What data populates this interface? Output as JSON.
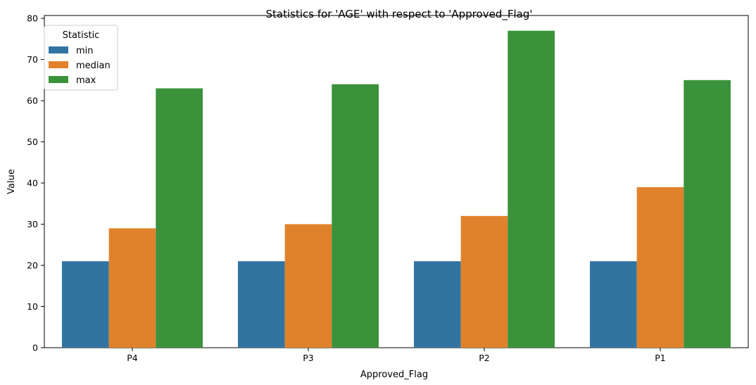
{
  "chart_data": {
    "type": "bar",
    "title": "Statistics for 'AGE' with respect to 'Approved_Flag'",
    "xlabel": "Approved_Flag",
    "ylabel": "Value",
    "categories": [
      "P4",
      "P3",
      "P2",
      "P1"
    ],
    "ylim": [
      0,
      80.7
    ],
    "yticks": [
      0,
      10,
      20,
      30,
      40,
      50,
      60,
      70,
      80
    ],
    "legend": {
      "title": "Statistic",
      "placement": "top-left"
    },
    "grid": false,
    "series": [
      {
        "name": "min",
        "color": "#3274a1",
        "values": [
          21,
          21,
          21,
          21
        ]
      },
      {
        "name": "median",
        "color": "#e1812c",
        "values": [
          29,
          30,
          32,
          39
        ]
      },
      {
        "name": "max",
        "color": "#3a923a",
        "values": [
          63,
          64,
          77,
          65
        ]
      }
    ]
  }
}
